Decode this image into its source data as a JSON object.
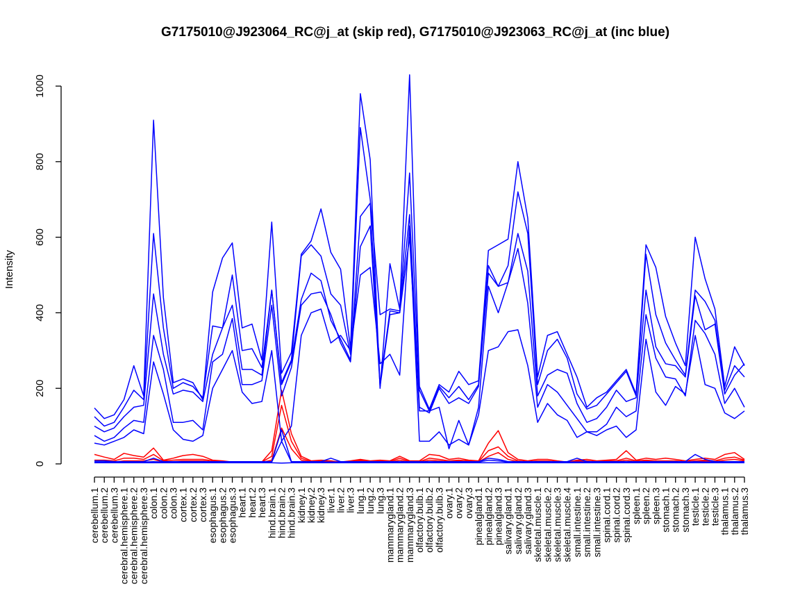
{
  "chart_data": {
    "type": "line",
    "title": "G7175010@J923064_RC@j_at (skip red), G7175010@J923063_RC@j_at (inc blue)",
    "xlabel": "",
    "ylabel": "Intensity",
    "ylim": [
      0,
      1030
    ],
    "yticks": [
      0,
      200,
      400,
      600,
      800,
      1000
    ],
    "grid": false,
    "legend": "none",
    "colors": {
      "inc": "#0000ff",
      "skip": "#ff0000"
    },
    "categories": [
      "cerebellum.1",
      "cerebellum.2",
      "cerebellum.3",
      "cerebral.hemisphere.1",
      "cerebral.hemisphere.2",
      "cerebral.hemisphere.3",
      "colon.1",
      "colon.2",
      "colon.3",
      "cortex.1",
      "cortex.2",
      "cortex.3",
      "esophagus.1",
      "esophagus.2",
      "esophagus.3",
      "heart.1",
      "heart.2",
      "heart.3",
      "hind.brain.1",
      "hind.brain.2",
      "hind.brain.3",
      "kidney.1",
      "kidney.2",
      "kidney.3",
      "liver.1",
      "liver.2",
      "liver.3",
      "lung.1",
      "lung.2",
      "lung.3",
      "mammarygland.1",
      "mammarygland.2",
      "mammarygland.3",
      "olfactory.bulb.1",
      "olfactory.bulb.2",
      "olfactory.bulb.3",
      "ovary.1",
      "ovary.2",
      "ovary.3",
      "pinealgland.1",
      "pinealgland.2",
      "pinealgland.3",
      "salivary.gland.1",
      "salivary.gland.2",
      "salivary.gland.3",
      "skeletal.muscle.1",
      "skeletal.muscle.2",
      "skeletal.muscle.3",
      "skeletal.muscle.4",
      "small.intestine.1",
      "small.intestine.2",
      "small.intestine.3",
      "spinal.cord.1",
      "spinal.cord.2",
      "spinal.cord.3",
      "spleen.1",
      "spleen.2",
      "spleen.3",
      "stomach.1",
      "stomach.2",
      "stomach.3",
      "testicle.1",
      "testicle.2",
      "testicle.3",
      "thalamus.1",
      "thalamus.2",
      "thalamus.3"
    ],
    "series": [
      {
        "group": "inc",
        "values": [
          148,
          120,
          130,
          170,
          260,
          180,
          910,
          440,
          215,
          225,
          215,
          170,
          455,
          545,
          585,
          360,
          370,
          275,
          640,
          240,
          295,
          555,
          590,
          675,
          560,
          515,
          305,
          980,
          805,
          200,
          530,
          410,
          1030,
          205,
          145,
          210,
          190,
          245,
          210,
          220,
          565,
          580,
          595,
          800,
          650,
          230,
          340,
          350,
          290,
          230,
          150,
          175,
          190,
          220,
          250,
          185,
          580,
          520,
          390,
          320,
          260,
          600,
          490,
          410,
          205,
          310,
          260
        ]
      },
      {
        "group": "inc",
        "values": [
          125,
          100,
          110,
          150,
          195,
          170,
          610,
          360,
          200,
          215,
          205,
          175,
          365,
          360,
          500,
          300,
          305,
          255,
          460,
          215,
          275,
          550,
          580,
          550,
          450,
          420,
          290,
          890,
          700,
          395,
          410,
          405,
          770,
          195,
          140,
          205,
          175,
          205,
          170,
          210,
          525,
          470,
          525,
          720,
          610,
          210,
          300,
          330,
          280,
          185,
          145,
          155,
          185,
          215,
          245,
          180,
          555,
          395,
          320,
          275,
          235,
          460,
          430,
          380,
          195,
          260,
          230
        ]
      },
      {
        "group": "inc",
        "values": [
          100,
          85,
          95,
          125,
          150,
          155,
          450,
          290,
          185,
          195,
          190,
          165,
          290,
          360,
          420,
          250,
          250,
          235,
          460,
          210,
          270,
          435,
          505,
          485,
          380,
          330,
          275,
          655,
          690,
          210,
          405,
          400,
          660,
          150,
          135,
          200,
          160,
          175,
          160,
          205,
          505,
          470,
          480,
          610,
          510,
          180,
          235,
          250,
          240,
          160,
          110,
          120,
          150,
          195,
          165,
          175,
          460,
          310,
          265,
          260,
          230,
          445,
          355,
          370,
          185,
          235,
          265
        ]
      },
      {
        "group": "inc",
        "values": [
          75,
          60,
          70,
          95,
          115,
          110,
          340,
          250,
          110,
          110,
          115,
          90,
          270,
          290,
          385,
          210,
          210,
          220,
          420,
          180,
          255,
          420,
          450,
          455,
          395,
          320,
          270,
          575,
          630,
          205,
          395,
          400,
          600,
          140,
          140,
          150,
          40,
          115,
          50,
          150,
          470,
          400,
          480,
          570,
          425,
          150,
          210,
          190,
          155,
          120,
          85,
          85,
          105,
          150,
          125,
          140,
          395,
          280,
          230,
          225,
          180,
          380,
          345,
          290,
          160,
          200,
          150
        ]
      },
      {
        "group": "inc",
        "values": [
          55,
          50,
          60,
          70,
          90,
          80,
          270,
          185,
          90,
          65,
          60,
          75,
          200,
          250,
          300,
          190,
          160,
          165,
          300,
          60,
          100,
          340,
          400,
          410,
          320,
          340,
          300,
          500,
          520,
          265,
          290,
          235,
          630,
          60,
          60,
          85,
          50,
          65,
          50,
          130,
          300,
          310,
          350,
          355,
          260,
          110,
          160,
          130,
          115,
          70,
          85,
          75,
          90,
          100,
          70,
          90,
          330,
          190,
          155,
          205,
          185,
          340,
          210,
          200,
          135,
          120,
          140
        ]
      },
      {
        "group": "inc",
        "values": [
          8,
          8,
          6,
          6,
          6,
          6,
          15,
          6,
          6,
          6,
          6,
          6,
          6,
          6,
          6,
          6,
          6,
          6,
          6,
          90,
          6,
          6,
          6,
          6,
          15,
          6,
          6,
          6,
          6,
          6,
          6,
          6,
          6,
          6,
          6,
          6,
          6,
          6,
          6,
          6,
          15,
          12,
          6,
          6,
          6,
          6,
          6,
          6,
          6,
          15,
          6,
          6,
          6,
          6,
          6,
          6,
          6,
          6,
          6,
          6,
          6,
          25,
          12,
          6,
          6,
          6,
          6
        ]
      },
      {
        "group": "inc",
        "values": [
          5,
          5,
          5,
          5,
          5,
          5,
          6,
          5,
          5,
          5,
          5,
          5,
          5,
          5,
          5,
          5,
          5,
          5,
          5,
          60,
          5,
          5,
          5,
          5,
          5,
          5,
          5,
          5,
          5,
          5,
          5,
          5,
          5,
          5,
          5,
          5,
          5,
          5,
          5,
          5,
          10,
          8,
          5,
          5,
          5,
          5,
          5,
          5,
          5,
          5,
          5,
          5,
          5,
          5,
          5,
          5,
          5,
          5,
          5,
          5,
          5,
          6,
          5,
          5,
          5,
          5,
          5
        ]
      },
      {
        "group": "inc",
        "values": [
          3,
          3,
          3,
          3,
          3,
          3,
          3,
          3,
          3,
          3,
          3,
          3,
          3,
          3,
          3,
          3,
          3,
          3,
          3,
          2,
          3,
          3,
          3,
          3,
          3,
          3,
          3,
          3,
          3,
          3,
          3,
          3,
          3,
          3,
          3,
          3,
          3,
          3,
          3,
          3,
          3,
          3,
          3,
          3,
          3,
          3,
          3,
          3,
          3,
          3,
          3,
          3,
          3,
          3,
          3,
          3,
          3,
          3,
          3,
          3,
          3,
          3,
          3,
          3,
          3,
          3,
          3
        ]
      },
      {
        "group": "skip",
        "values": [
          25,
          18,
          12,
          28,
          22,
          18,
          42,
          10,
          15,
          22,
          25,
          20,
          10,
          8,
          5,
          5,
          5,
          5,
          35,
          195,
          80,
          20,
          8,
          10,
          8,
          5,
          8,
          12,
          8,
          10,
          8,
          20,
          8,
          8,
          25,
          22,
          12,
          15,
          10,
          8,
          55,
          88,
          30,
          12,
          8,
          12,
          12,
          8,
          5,
          10,
          12,
          8,
          10,
          12,
          35,
          10,
          15,
          12,
          15,
          12,
          8,
          12,
          15,
          12,
          25,
          30,
          12
        ]
      },
      {
        "group": "skip",
        "values": [
          10,
          10,
          8,
          15,
          15,
          12,
          25,
          8,
          10,
          12,
          12,
          12,
          8,
          6,
          5,
          5,
          5,
          5,
          20,
          155,
          60,
          15,
          6,
          8,
          6,
          5,
          6,
          10,
          6,
          8,
          6,
          15,
          6,
          6,
          15,
          12,
          8,
          10,
          8,
          6,
          35,
          45,
          20,
          8,
          6,
          8,
          8,
          6,
          5,
          8,
          8,
          6,
          8,
          8,
          15,
          8,
          10,
          8,
          8,
          8,
          6,
          8,
          10,
          8,
          15,
          18,
          10
        ]
      },
      {
        "group": "skip",
        "values": [
          5,
          5,
          5,
          8,
          8,
          8,
          12,
          5,
          6,
          8,
          8,
          8,
          6,
          5,
          4,
          4,
          4,
          4,
          10,
          95,
          40,
          10,
          5,
          6,
          5,
          4,
          5,
          8,
          5,
          6,
          5,
          10,
          5,
          5,
          10,
          8,
          6,
          8,
          6,
          5,
          20,
          30,
          12,
          6,
          5,
          6,
          6,
          5,
          4,
          6,
          6,
          5,
          6,
          6,
          10,
          6,
          8,
          6,
          6,
          6,
          5,
          6,
          8,
          6,
          10,
          12,
          8
        ]
      }
    ]
  }
}
